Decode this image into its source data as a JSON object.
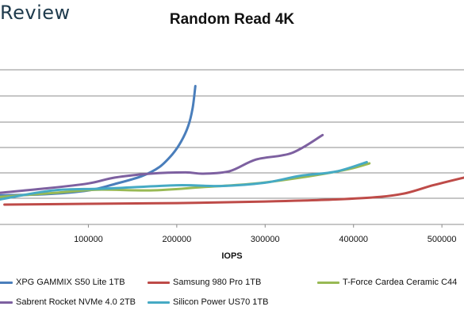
{
  "brand": "Review",
  "chart_data": {
    "type": "line",
    "title": "Random Read 4K",
    "xlabel": "IOPS",
    "ylabel": "",
    "x_ticks": [
      100000,
      200000,
      300000,
      400000,
      500000
    ],
    "x_tick_labels": [
      "100000",
      "200000",
      "300000",
      "400000",
      "500000"
    ],
    "xlim": [
      0,
      525000
    ],
    "grid": true,
    "legend_position": "bottom",
    "series": [
      {
        "name": "XPG GAMMIX S50 Lite 1TB",
        "color": "#4a7ebb",
        "points": [
          [
            0,
            0.36
          ],
          [
            50000,
            0.4
          ],
          [
            100000,
            0.55
          ],
          [
            130000,
            0.8
          ],
          [
            160000,
            1.1
          ],
          [
            180000,
            1.45
          ],
          [
            195000,
            1.95
          ],
          [
            205000,
            2.45
          ],
          [
            213000,
            3.05
          ],
          [
            218000,
            3.75
          ],
          [
            221000,
            4.6
          ]
        ]
      },
      {
        "name": "Samsung 980 Pro 1TB",
        "color": "#be4b48",
        "points": [
          [
            5000,
            0.0
          ],
          [
            100000,
            0.03
          ],
          [
            200000,
            0.06
          ],
          [
            300000,
            0.12
          ],
          [
            380000,
            0.2
          ],
          [
            430000,
            0.3
          ],
          [
            460000,
            0.45
          ],
          [
            490000,
            0.75
          ],
          [
            525000,
            1.05
          ]
        ]
      },
      {
        "name": "T-Force Cardea Ceramic C44",
        "color": "#98b954",
        "points": [
          [
            0,
            0.3
          ],
          [
            60000,
            0.45
          ],
          [
            110000,
            0.58
          ],
          [
            170000,
            0.55
          ],
          [
            230000,
            0.68
          ],
          [
            290000,
            0.82
          ],
          [
            350000,
            1.1
          ],
          [
            395000,
            1.38
          ],
          [
            418000,
            1.6
          ]
        ]
      },
      {
        "name": "Sabrent Rocket NVMe 4.0 2TB",
        "color": "#7d60a0",
        "points": [
          [
            0,
            0.46
          ],
          [
            50000,
            0.62
          ],
          [
            100000,
            0.82
          ],
          [
            130000,
            1.05
          ],
          [
            170000,
            1.2
          ],
          [
            210000,
            1.25
          ],
          [
            230000,
            1.2
          ],
          [
            260000,
            1.3
          ],
          [
            290000,
            1.75
          ],
          [
            330000,
            2.0
          ],
          [
            365000,
            2.7
          ]
        ]
      },
      {
        "name": "Silicon Power US70 1TB",
        "color": "#46aac4",
        "points": [
          [
            0,
            0.2
          ],
          [
            60000,
            0.55
          ],
          [
            120000,
            0.62
          ],
          [
            200000,
            0.75
          ],
          [
            250000,
            0.72
          ],
          [
            300000,
            0.85
          ],
          [
            340000,
            1.12
          ],
          [
            380000,
            1.28
          ],
          [
            415000,
            1.65
          ]
        ]
      }
    ]
  }
}
